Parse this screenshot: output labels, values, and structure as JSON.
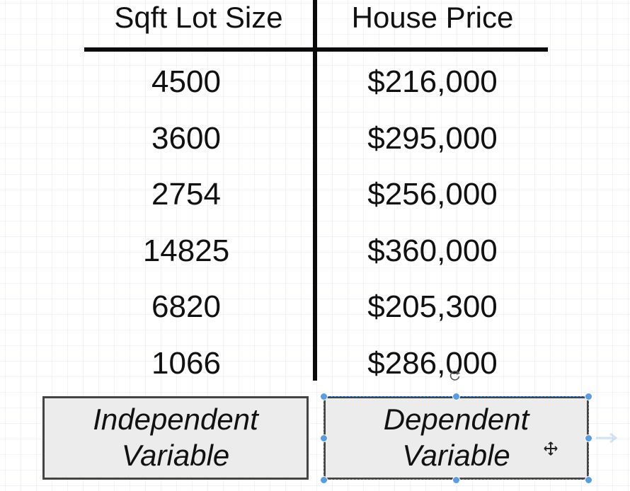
{
  "table": {
    "headers": [
      "Sqft Lot Size",
      "House Price"
    ],
    "rows": [
      [
        "4500",
        "$216,000"
      ],
      [
        "3600",
        "$295,000"
      ],
      [
        "2754",
        "$256,000"
      ],
      [
        "14825",
        "$360,000"
      ],
      [
        "6820",
        "$205,300"
      ],
      [
        "1066",
        "$286,000"
      ]
    ]
  },
  "labels": {
    "independent": [
      "Independent",
      "Variable"
    ],
    "dependent": [
      "Dependent",
      "Variable"
    ]
  },
  "icons": {
    "rotate": "rotate-handle-icon",
    "move": "move-cursor-icon",
    "connector": "connector-arrow-icon"
  },
  "colors": {
    "selection": "#5b9be0",
    "box_fill": "#ececec",
    "line": "#0a0a0a"
  }
}
